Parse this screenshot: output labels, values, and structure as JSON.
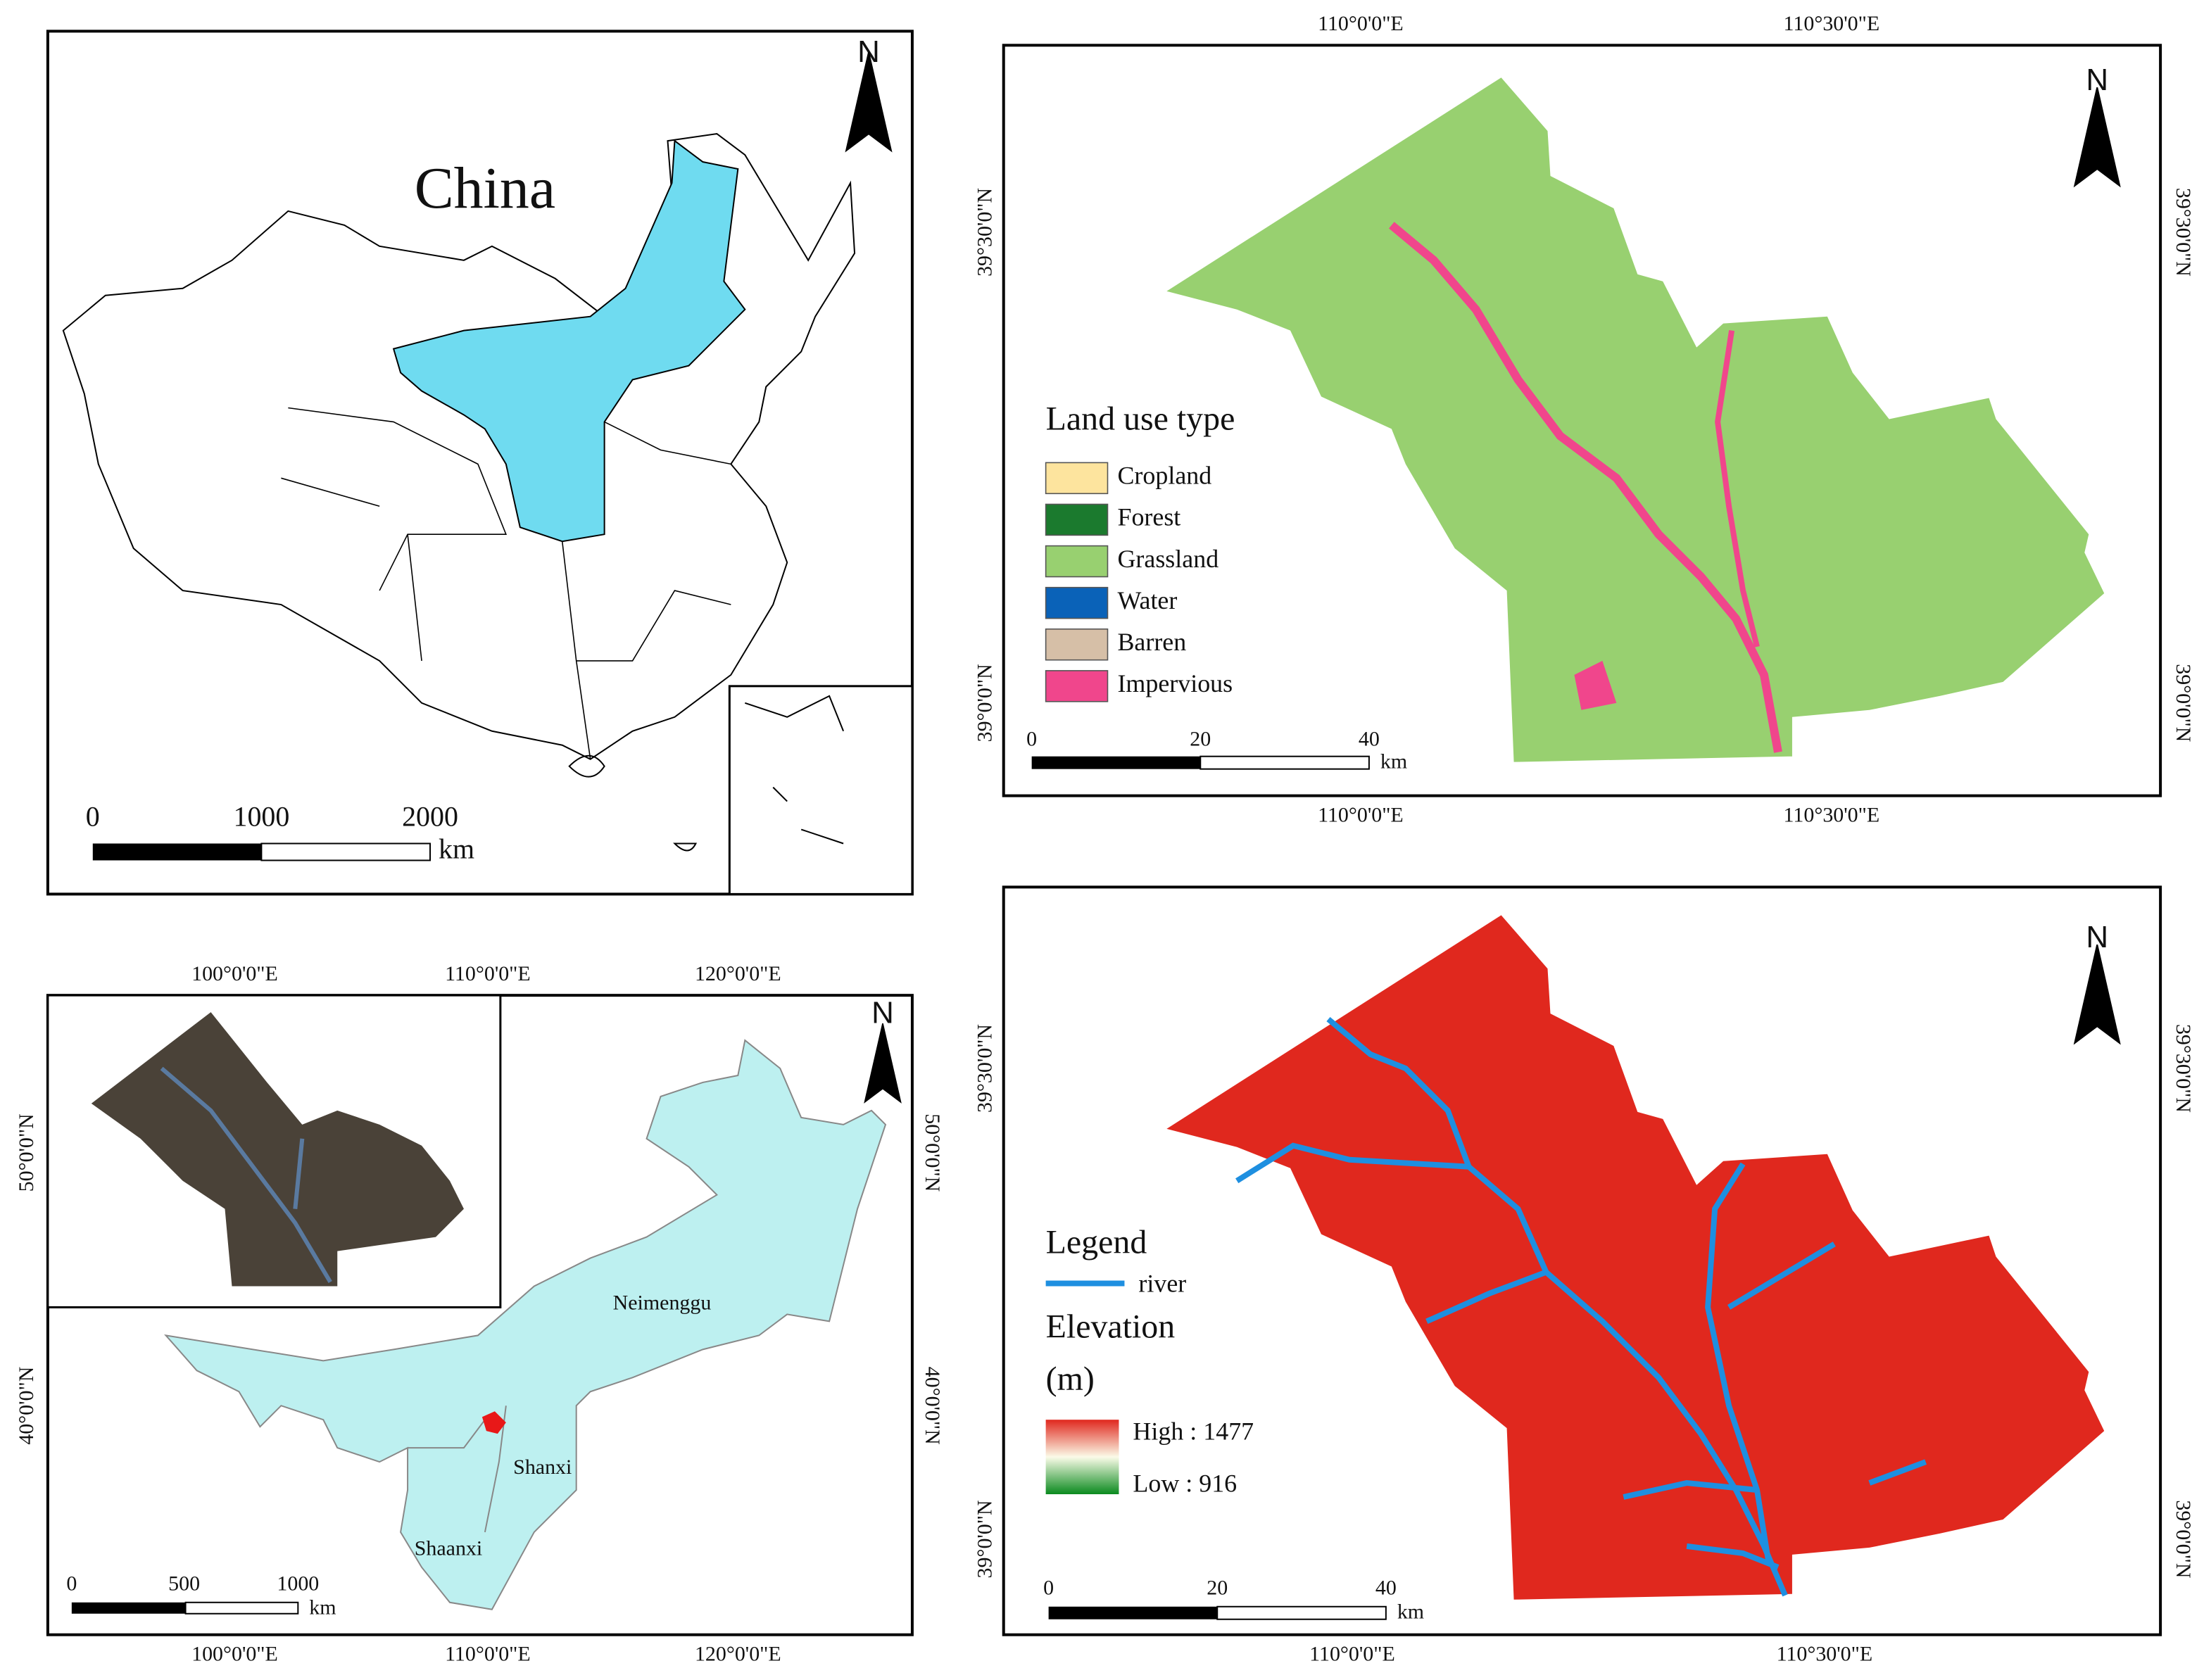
{
  "china_map": {
    "title": "China",
    "north": "N",
    "scale": {
      "ticks": [
        "0",
        "1000",
        "2000"
      ],
      "unit": "km"
    }
  },
  "land_use_map": {
    "north": "N",
    "lon_top": [
      "110°0'0\"E",
      "110°30'0\"E"
    ],
    "lon_bottom": [
      "110°0'0\"E",
      "110°30'0\"E"
    ],
    "lat_left": [
      "39°30'0\"N",
      "39°0'0\"N"
    ],
    "lat_right": [
      "39°30'0\"N",
      "39°0'0\"N"
    ],
    "legend": {
      "title": "Land use type",
      "items": [
        {
          "label": "Cropland",
          "color": "#fde49e"
        },
        {
          "label": "Forest",
          "color": "#1b7a2e"
        },
        {
          "label": "Grassland",
          "color": "#98d070"
        },
        {
          "label": "Water",
          "color": "#0a62b8"
        },
        {
          "label": "Barren",
          "color": "#d6bfa7"
        },
        {
          "label": "Impervious",
          "color": "#f0468c"
        }
      ]
    },
    "scale": {
      "ticks": [
        "0",
        "20",
        "40"
      ],
      "unit": "km"
    }
  },
  "location_map": {
    "north": "N",
    "lon_top": [
      "100°0'0\"E",
      "110°0'0\"E",
      "120°0'0\"E"
    ],
    "lon_bottom": [
      "100°0'0\"E",
      "110°0'0\"E",
      "120°0'0\"E"
    ],
    "lat_left": [
      "50°0'0\"N",
      "40°0'0\"N"
    ],
    "lat_right": [
      "50°0'0\"N",
      "40°0'0\"N"
    ],
    "labels": [
      "Neimenggu",
      "Shanxi",
      "Shaanxi"
    ],
    "scale": {
      "ticks": [
        "0",
        "500",
        "1000"
      ],
      "unit": "km"
    }
  },
  "elevation_map": {
    "north": "N",
    "lon_bottom": [
      "110°0'0\"E",
      "110°30'0\"E"
    ],
    "lat_left": [
      "39°30'0\"N",
      "39°0'0\"N"
    ],
    "lat_right": [
      "39°30'0\"N",
      "39°0'0\"N"
    ],
    "legend": {
      "title": "Legend",
      "river": "river",
      "elevation_title": "Elevation",
      "unit": "(m)",
      "high": "High : 1477",
      "low": "Low : 916"
    },
    "scale": {
      "ticks": [
        "0",
        "20",
        "40"
      ],
      "unit": "km"
    }
  }
}
